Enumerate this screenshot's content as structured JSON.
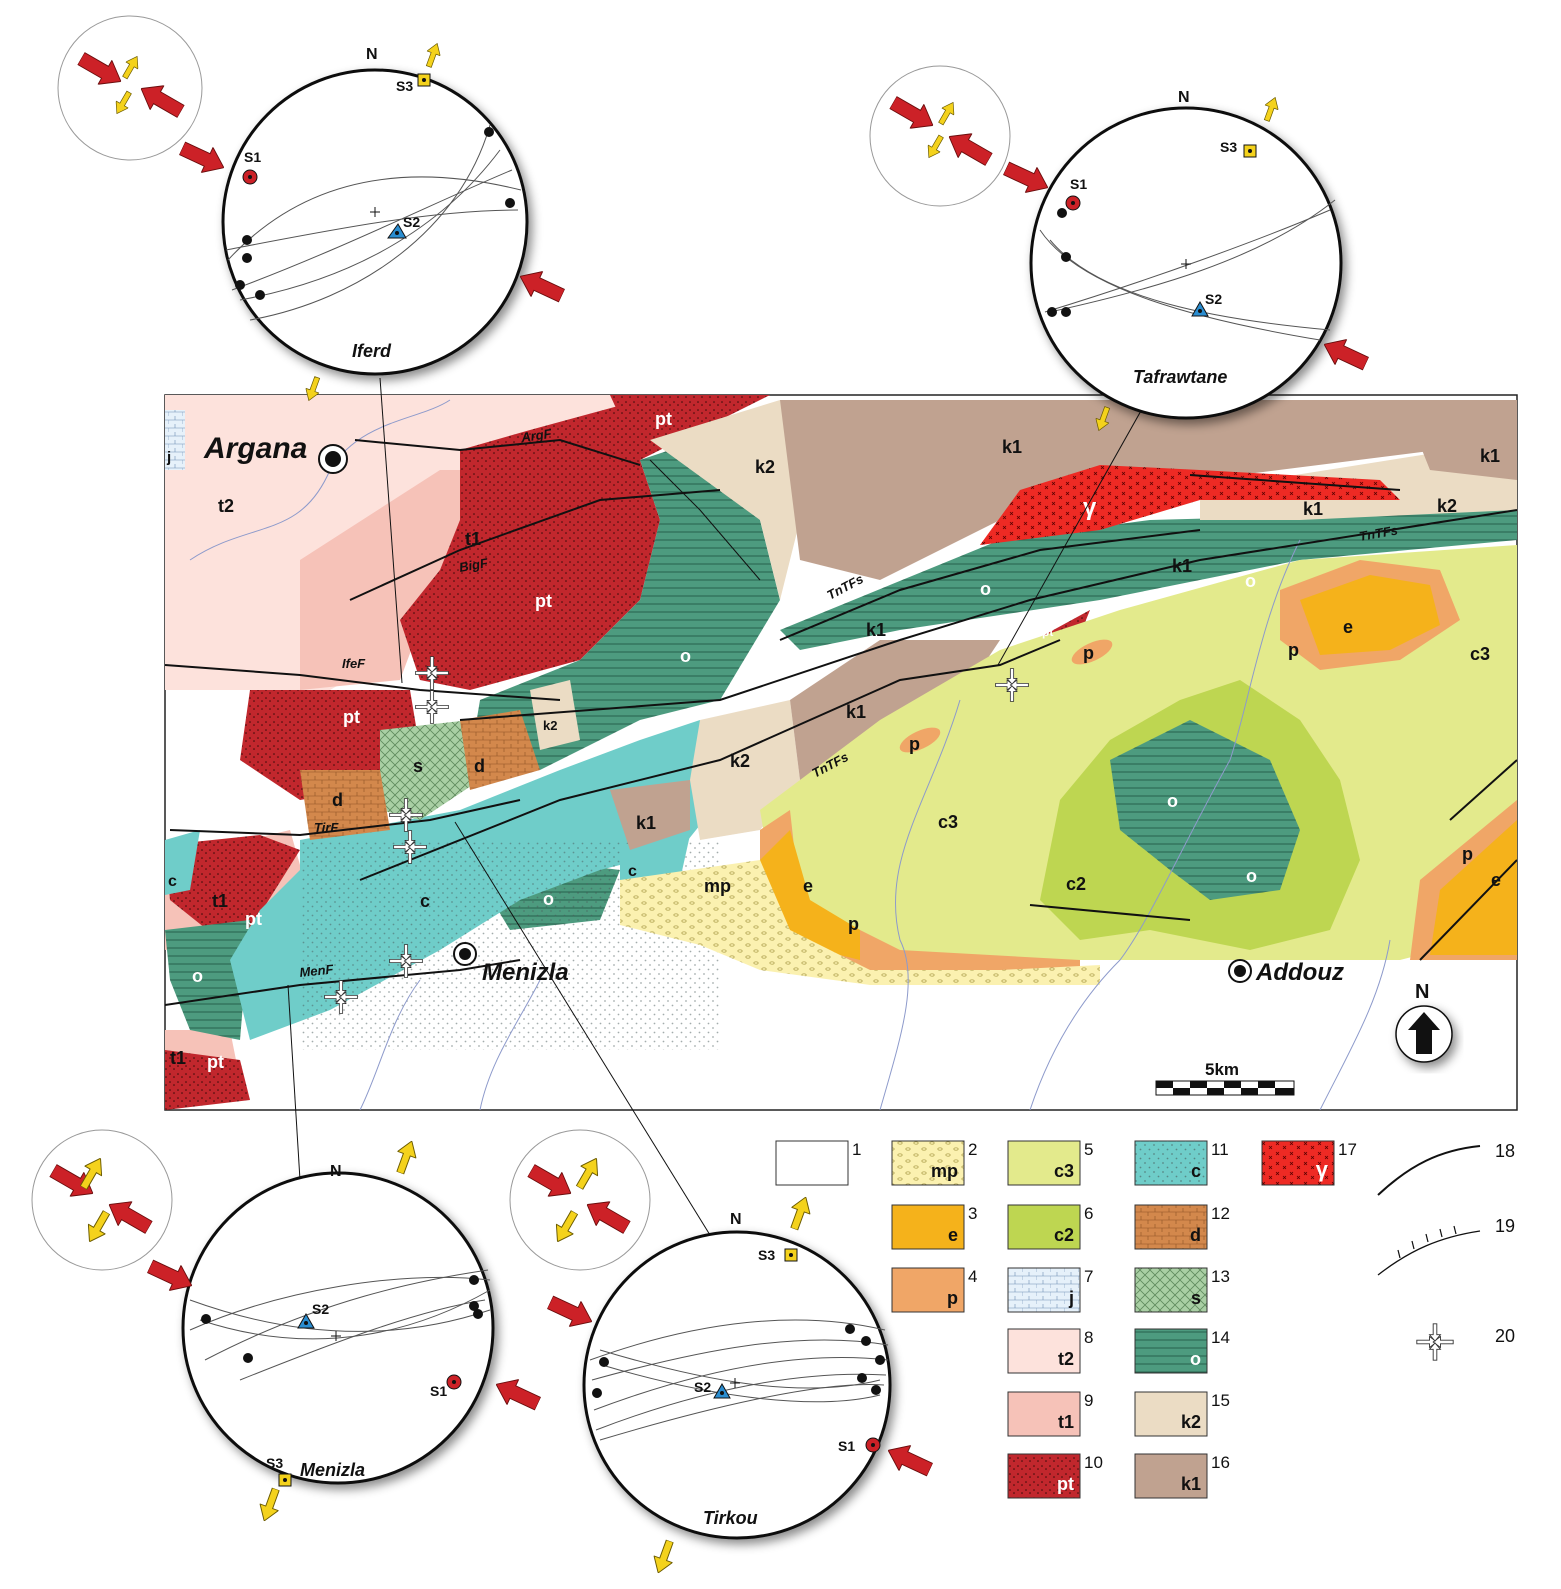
{
  "towns": [
    {
      "name": "Argana"
    },
    {
      "name": "Menizla"
    },
    {
      "name": "Addouz"
    }
  ],
  "faults": [
    "ArgF",
    "BigF",
    "IfeF",
    "TirF",
    "MenF",
    "TnTFs",
    "TnTFs",
    "TnTFs"
  ],
  "unit_labels": [
    "j",
    "t2",
    "t1",
    "t1",
    "t1",
    "pt",
    "pt",
    "pt",
    "pt",
    "pt",
    "pt",
    "pt",
    "k2",
    "k2",
    "k2",
    "k2",
    "k1",
    "k1",
    "k1",
    "k1",
    "k1",
    "k1",
    "k1",
    "o",
    "o",
    "o",
    "o",
    "o",
    "o",
    "o",
    "o",
    "s",
    "d",
    "d",
    "c",
    "c",
    "c",
    "c",
    "mp",
    "e",
    "e",
    "e",
    "p",
    "p",
    "p",
    "p",
    "p",
    "c3",
    "c3",
    "c2",
    "γ"
  ],
  "north_arrow": "N",
  "scale_bar": "5km",
  "stereonets": [
    {
      "site": "Iferd",
      "north": "N",
      "s1": "S1",
      "s2": "S2",
      "s3": "S3"
    },
    {
      "site": "Tafrawtane",
      "north": "N",
      "s1": "S1",
      "s2": "S2",
      "s3": "S3"
    },
    {
      "site": "Menizla",
      "north": "N",
      "s1": "S1",
      "s2": "S2",
      "s3": "S3"
    },
    {
      "site": "Tirkou",
      "north": "N",
      "s1": "S1",
      "s2": "S2",
      "s3": "S3"
    }
  ],
  "legend": [
    {
      "num": "1",
      "code": "",
      "color": "#ffffff"
    },
    {
      "num": "2",
      "code": "mp",
      "color": "#fbf1b0"
    },
    {
      "num": "3",
      "code": "e",
      "color": "#f5b21b"
    },
    {
      "num": "4",
      "code": "p",
      "color": "#f0a667"
    },
    {
      "num": "5",
      "code": "c3",
      "color": "#e3ea8c"
    },
    {
      "num": "6",
      "code": "c2",
      "color": "#bed651"
    },
    {
      "num": "7",
      "code": "j",
      "color": "#e6f1fa"
    },
    {
      "num": "8",
      "code": "t2",
      "color": "#fde2dc"
    },
    {
      "num": "9",
      "code": "t1",
      "color": "#f6c2b8"
    },
    {
      "num": "10",
      "code": "pt",
      "color": "#c1272d"
    },
    {
      "num": "11",
      "code": "c",
      "color": "#6fcdc9"
    },
    {
      "num": "12",
      "code": "d",
      "color": "#d3884c"
    },
    {
      "num": "13",
      "code": "s",
      "color": "#a9cfa4"
    },
    {
      "num": "14",
      "code": "o",
      "color": "#4d9b7f"
    },
    {
      "num": "15",
      "code": "k2",
      "color": "#ebdcc4"
    },
    {
      "num": "16",
      "code": "k1",
      "color": "#c0a290"
    },
    {
      "num": "17",
      "code": "γ",
      "color": "#ee2a24"
    },
    {
      "num": "18",
      "code": "",
      "color": ""
    },
    {
      "num": "19",
      "code": "",
      "color": ""
    },
    {
      "num": "20",
      "code": "",
      "color": ""
    }
  ]
}
